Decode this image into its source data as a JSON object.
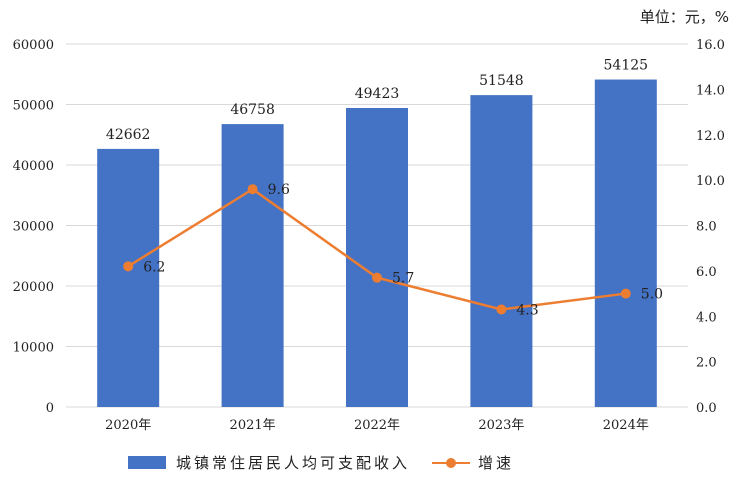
{
  "unit_label": "单位：元，%",
  "legend": {
    "bar_label": "城镇常住居民人均可支配收入",
    "line_label": "增速"
  },
  "colors": {
    "bar": "#4472c4",
    "line": "#ed7d31",
    "grid": "#d9d9d9"
  },
  "chart_data": {
    "type": "bar",
    "categories": [
      "2020年",
      "2021年",
      "2022年",
      "2023年",
      "2024年"
    ],
    "series": [
      {
        "name": "城镇常住居民人均可支配收入",
        "type": "bar",
        "axis": "left",
        "values": [
          42662,
          46758,
          49423,
          51548,
          54125
        ]
      },
      {
        "name": "增速",
        "type": "line",
        "axis": "right",
        "values": [
          6.2,
          9.6,
          5.7,
          4.3,
          5.0
        ]
      }
    ],
    "y_left": {
      "ylim": [
        0,
        60000
      ],
      "ticks": [
        "0",
        "10000",
        "20000",
        "30000",
        "40000",
        "50000",
        "60000"
      ]
    },
    "y_right": {
      "ylim": [
        0,
        16
      ],
      "ticks": [
        "0.0",
        "2.0",
        "4.0",
        "6.0",
        "8.0",
        "10.0",
        "12.0",
        "14.0",
        "16.0"
      ]
    },
    "grid": true,
    "legend_position": "bottom"
  }
}
